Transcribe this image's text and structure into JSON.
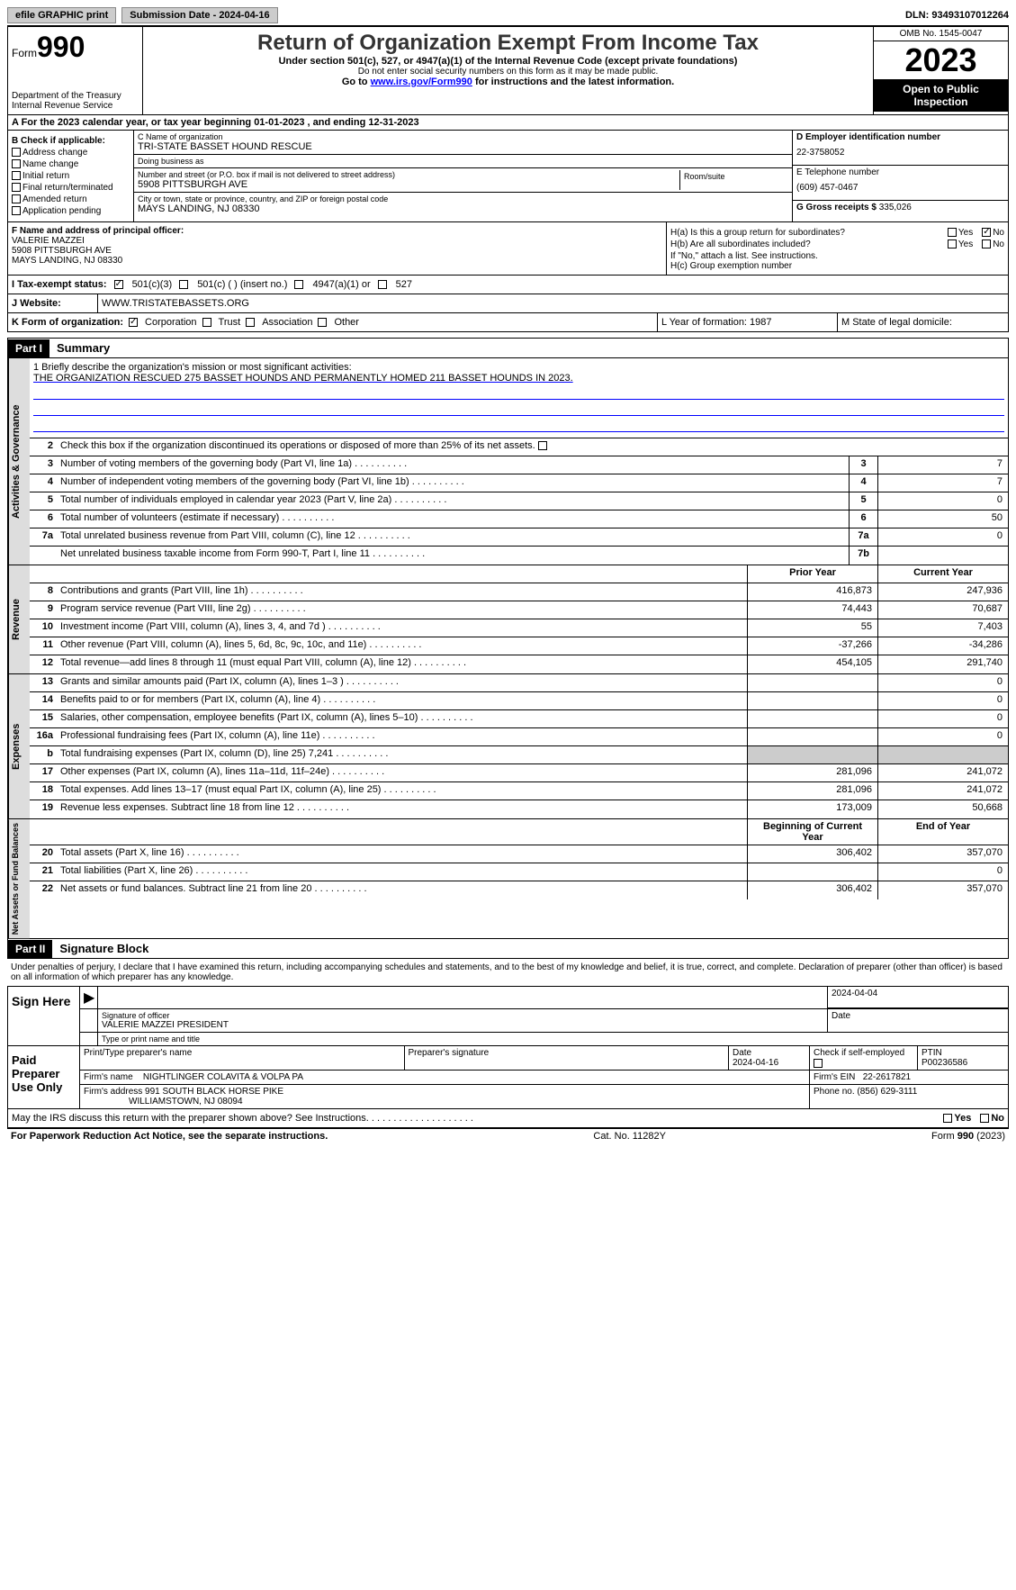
{
  "topbar": {
    "efile": "efile GRAPHIC print",
    "submission": "Submission Date - 2024-04-16",
    "dln": "DLN: 93493107012264"
  },
  "header": {
    "form_label": "Form",
    "form_num": "990",
    "dept": "Department of the Treasury\nInternal Revenue Service",
    "title": "Return of Organization Exempt From Income Tax",
    "sub1": "Under section 501(c), 527, or 4947(a)(1) of the Internal Revenue Code (except private foundations)",
    "sub2": "Do not enter social security numbers on this form as it may be made public.",
    "sub3_pre": "Go to ",
    "sub3_link": "www.irs.gov/Form990",
    "sub3_post": " for instructions and the latest information.",
    "omb": "OMB No. 1545-0047",
    "year": "2023",
    "open": "Open to Public Inspection"
  },
  "rowA": "A For the 2023 calendar year, or tax year beginning 01-01-2023   , and ending 12-31-2023",
  "colB": {
    "hdr": "B Check if applicable:",
    "items": [
      "Address change",
      "Name change",
      "Initial return",
      "Final return/terminated",
      "Amended return",
      "Application pending"
    ]
  },
  "colC": {
    "name_lbl": "C Name of organization",
    "name": "TRI-STATE BASSET HOUND RESCUE",
    "dba_lbl": "Doing business as",
    "dba": "",
    "addr_lbl": "Number and street (or P.O. box if mail is not delivered to street address)",
    "addr": "5908 PITTSBURGH AVE",
    "room_lbl": "Room/suite",
    "city_lbl": "City or town, state or province, country, and ZIP or foreign postal code",
    "city": "MAYS LANDING, NJ  08330"
  },
  "colD": {
    "ein_lbl": "D Employer identification number",
    "ein": "22-3758052",
    "phone_lbl": "E Telephone number",
    "phone": "(609) 457-0467",
    "gross_lbl": "G Gross receipts $ ",
    "gross": "335,026"
  },
  "colF": {
    "lbl": "F  Name and address of principal officer:",
    "name": "VALERIE MAZZEI",
    "addr1": "5908 PITTSBURGH AVE",
    "addr2": "MAYS LANDING, NJ  08330"
  },
  "colH": {
    "a": "H(a)  Is this a group return for subordinates?",
    "b": "H(b)  Are all subordinates included?",
    "note": "If \"No,\" attach a list. See instructions.",
    "c": "H(c)  Group exemption number"
  },
  "rowI": {
    "lbl": "I   Tax-exempt status:",
    "o1": "501(c)(3)",
    "o2": "501(c) (  ) (insert no.)",
    "o3": "4947(a)(1) or",
    "o4": "527"
  },
  "rowJ": {
    "lbl": "J   Website:",
    "val": " WWW.TRISTATEBASSETS.ORG"
  },
  "rowK": {
    "lbl": "K Form of organization:",
    "o1": "Corporation",
    "o2": "Trust",
    "o3": "Association",
    "o4": "Other",
    "l": "L Year of formation: 1987",
    "m": "M State of legal domicile:"
  },
  "part1": {
    "hdr": "Part I",
    "title": "Summary"
  },
  "mission": {
    "lbl": "1   Briefly describe the organization's mission or most significant activities:",
    "text": "THE ORGANIZATION RESCUED 275 BASSET HOUNDS AND PERMANENTLY HOMED 211 BASSET HOUNDS IN 2023."
  },
  "gov": {
    "side": "Activities & Governance",
    "l2": "Check this box      if the organization discontinued its operations or disposed of more than 25% of its net assets.",
    "rows": [
      {
        "n": "3",
        "d": "Number of voting members of the governing body (Part VI, line 1a)",
        "b": "3",
        "v": "7"
      },
      {
        "n": "4",
        "d": "Number of independent voting members of the governing body (Part VI, line 1b)",
        "b": "4",
        "v": "7"
      },
      {
        "n": "5",
        "d": "Total number of individuals employed in calendar year 2023 (Part V, line 2a)",
        "b": "5",
        "v": "0"
      },
      {
        "n": "6",
        "d": "Total number of volunteers (estimate if necessary)",
        "b": "6",
        "v": "50"
      },
      {
        "n": "7a",
        "d": "Total unrelated business revenue from Part VIII, column (C), line 12",
        "b": "7a",
        "v": "0"
      },
      {
        "n": "",
        "d": "Net unrelated business taxable income from Form 990-T, Part I, line 11",
        "b": "7b",
        "v": ""
      }
    ]
  },
  "rev": {
    "side": "Revenue",
    "hdr": {
      "py": "Prior Year",
      "cy": "Current Year"
    },
    "rows": [
      {
        "n": "8",
        "d": "Contributions and grants (Part VIII, line 1h)",
        "py": "416,873",
        "cy": "247,936"
      },
      {
        "n": "9",
        "d": "Program service revenue (Part VIII, line 2g)",
        "py": "74,443",
        "cy": "70,687"
      },
      {
        "n": "10",
        "d": "Investment income (Part VIII, column (A), lines 3, 4, and 7d )",
        "py": "55",
        "cy": "7,403"
      },
      {
        "n": "11",
        "d": "Other revenue (Part VIII, column (A), lines 5, 6d, 8c, 9c, 10c, and 11e)",
        "py": "-37,266",
        "cy": "-34,286"
      },
      {
        "n": "12",
        "d": "Total revenue—add lines 8 through 11 (must equal Part VIII, column (A), line 12)",
        "py": "454,105",
        "cy": "291,740"
      }
    ]
  },
  "exp": {
    "side": "Expenses",
    "rows": [
      {
        "n": "13",
        "d": "Grants and similar amounts paid (Part IX, column (A), lines 1–3 )",
        "py": "",
        "cy": "0"
      },
      {
        "n": "14",
        "d": "Benefits paid to or for members (Part IX, column (A), line 4)",
        "py": "",
        "cy": "0"
      },
      {
        "n": "15",
        "d": "Salaries, other compensation, employee benefits (Part IX, column (A), lines 5–10)",
        "py": "",
        "cy": "0"
      },
      {
        "n": "16a",
        "d": "Professional fundraising fees (Part IX, column (A), line 11e)",
        "py": "",
        "cy": "0"
      },
      {
        "n": "b",
        "d": "Total fundraising expenses (Part IX, column (D), line 25) 7,241",
        "py": "gray",
        "cy": "gray"
      },
      {
        "n": "17",
        "d": "Other expenses (Part IX, column (A), lines 11a–11d, 11f–24e)",
        "py": "281,096",
        "cy": "241,072"
      },
      {
        "n": "18",
        "d": "Total expenses. Add lines 13–17 (must equal Part IX, column (A), line 25)",
        "py": "281,096",
        "cy": "241,072"
      },
      {
        "n": "19",
        "d": "Revenue less expenses. Subtract line 18 from line 12",
        "py": "173,009",
        "cy": "50,668"
      }
    ]
  },
  "net": {
    "side": "Net Assets or Fund Balances",
    "hdr": {
      "py": "Beginning of Current Year",
      "cy": "End of Year"
    },
    "rows": [
      {
        "n": "20",
        "d": "Total assets (Part X, line 16)",
        "py": "306,402",
        "cy": "357,070"
      },
      {
        "n": "21",
        "d": "Total liabilities (Part X, line 26)",
        "py": "",
        "cy": "0"
      },
      {
        "n": "22",
        "d": "Net assets or fund balances. Subtract line 21 from line 20",
        "py": "306,402",
        "cy": "357,070"
      }
    ]
  },
  "part2": {
    "hdr": "Part II",
    "title": "Signature Block"
  },
  "sig": {
    "decl": "Under penalties of perjury, I declare that I have examined this return, including accompanying schedules and statements, and to the best of my knowledge and belief, it is true, correct, and complete. Declaration of preparer (other than officer) is based on all information of which preparer has any knowledge.",
    "here": "Sign Here",
    "officer_sig_lbl": "Signature of officer",
    "officer": "VALERIE MAZZEI PRESIDENT",
    "officer_title_lbl": "Type or print name and title",
    "date": "2024-04-04",
    "date_lbl": "Date",
    "paid": "Paid Preparer Use Only",
    "prep_name_lbl": "Print/Type preparer's name",
    "prep_sig_lbl": "Preparer's signature",
    "prep_date_lbl": "Date",
    "prep_date": "2024-04-16",
    "self_emp": "Check        if self-employed",
    "ptin_lbl": "PTIN",
    "ptin": "P00236586",
    "firm_name_lbl": "Firm's name",
    "firm_name": "NIGHTLINGER COLAVITA & VOLPA PA",
    "firm_ein_lbl": "Firm's EIN",
    "firm_ein": "22-2617821",
    "firm_addr_lbl": "Firm's address",
    "firm_addr1": "991 SOUTH BLACK HORSE PIKE",
    "firm_addr2": "WILLIAMSTOWN, NJ  08094",
    "firm_phone_lbl": "Phone no.",
    "firm_phone": "(856) 629-3111",
    "discuss": "May the IRS discuss this return with the preparer shown above? See Instructions."
  },
  "footer": {
    "left": "For Paperwork Reduction Act Notice, see the separate instructions.",
    "mid": "Cat. No. 11282Y",
    "right_pre": "Form ",
    "right_form": "990",
    "right_post": " (2023)"
  }
}
